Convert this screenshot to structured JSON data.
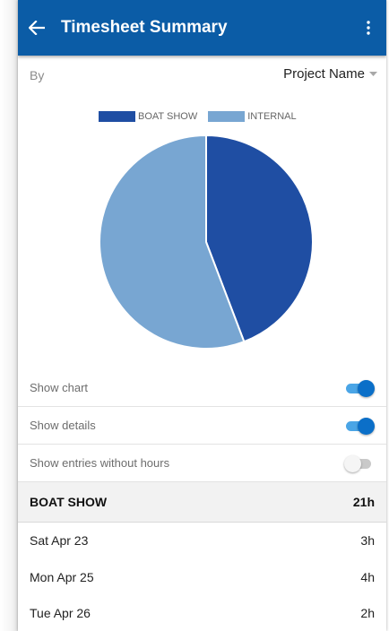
{
  "header": {
    "title": "Timesheet Summary",
    "back_icon": "arrow-left-icon",
    "menu_icon": "more-vert-icon"
  },
  "filter": {
    "label": "By",
    "selected": "Project Name"
  },
  "colors": {
    "appbar": "#0b5ca6",
    "boat_show": "#1f4ea3",
    "internal": "#78a6d2",
    "toggle_on": "#0b6fc8"
  },
  "chart_data": {
    "type": "pie",
    "legend_position": "top",
    "series": [
      {
        "name": "BOAT SHOW",
        "value": 21,
        "color": "#1f4ea3"
      },
      {
        "name": "INTERNAL",
        "value": 26.5,
        "color": "#78a6d2"
      }
    ]
  },
  "options": [
    {
      "label": "Show chart",
      "enabled": true
    },
    {
      "label": "Show details",
      "enabled": true
    },
    {
      "label": "Show entries without hours",
      "enabled": false
    }
  ],
  "group": {
    "name": "BOAT SHOW",
    "total": "21h"
  },
  "entries": [
    {
      "date": "Sat Apr 23",
      "hours": "3h"
    },
    {
      "date": "Mon Apr 25",
      "hours": "4h"
    },
    {
      "date": "Tue Apr 26",
      "hours": "2h"
    }
  ]
}
